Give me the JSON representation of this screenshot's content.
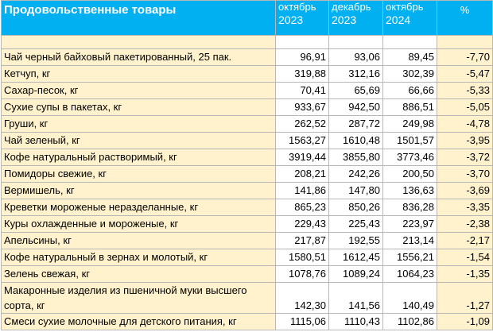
{
  "header": {
    "title": "Продовольственные товары",
    "columns": [
      {
        "month": "октябрь",
        "year": "2023"
      },
      {
        "month": "декабрь",
        "year": "2023"
      },
      {
        "month": "октябрь",
        "year": "2024"
      }
    ],
    "percent_label": "%"
  },
  "rows": [
    {
      "name": "Чай черный байховый пакетированный, 25 пак.",
      "oct2023": "96,91",
      "dec2023": "93,06",
      "oct2024": "89,45",
      "pct": "-7,70"
    },
    {
      "name": "Кетчуп, кг",
      "oct2023": "319,88",
      "dec2023": "312,16",
      "oct2024": "302,39",
      "pct": "-5,47"
    },
    {
      "name": "Сахар-песок, кг",
      "oct2023": "70,41",
      "dec2023": "65,69",
      "oct2024": "66,66",
      "pct": "-5,33"
    },
    {
      "name": "Сухие супы в пакетах, кг",
      "oct2023": "933,67",
      "dec2023": "942,50",
      "oct2024": "886,51",
      "pct": "-5,05"
    },
    {
      "name": "Груши, кг",
      "oct2023": "262,52",
      "dec2023": "287,72",
      "oct2024": "249,98",
      "pct": "-4,78"
    },
    {
      "name": "Чай зеленый, кг",
      "oct2023": "1563,27",
      "dec2023": "1610,48",
      "oct2024": "1501,57",
      "pct": "-3,95"
    },
    {
      "name": "Кофе натуральный растворимый, кг",
      "oct2023": "3919,44",
      "dec2023": "3855,80",
      "oct2024": "3773,46",
      "pct": "-3,72"
    },
    {
      "name": "Помидоры свежие, кг",
      "oct2023": "208,21",
      "dec2023": "242,26",
      "oct2024": "200,50",
      "pct": "-3,70"
    },
    {
      "name": "Вермишель, кг",
      "oct2023": "141,86",
      "dec2023": "147,80",
      "oct2024": "136,63",
      "pct": "-3,69"
    },
    {
      "name": "Креветки мороженые неразделанные, кг",
      "oct2023": "865,23",
      "dec2023": "850,26",
      "oct2024": "836,28",
      "pct": "-3,35"
    },
    {
      "name": "Куры охлажденные и мороженые, кг",
      "oct2023": "229,43",
      "dec2023": "225,43",
      "oct2024": "223,97",
      "pct": "-2,38"
    },
    {
      "name": "Апельсины, кг",
      "oct2023": "217,87",
      "dec2023": "192,55",
      "oct2024": "213,14",
      "pct": "-2,17"
    },
    {
      "name": "Кофе натуральный в зернах и молотый, кг",
      "oct2023": "1580,51",
      "dec2023": "1612,45",
      "oct2024": "1556,21",
      "pct": "-1,54"
    },
    {
      "name": "Зелень свежая, кг",
      "oct2023": "1078,76",
      "dec2023": "1089,24",
      "oct2024": "1064,23",
      "pct": "-1,35"
    },
    {
      "name": "Макаронные изделия из пшеничной муки высшего сорта, кг",
      "oct2023": "142,30",
      "dec2023": "141,56",
      "oct2024": "140,49",
      "pct": "-1,27"
    },
    {
      "name": "Смеси сухие молочные для детского питания, кг",
      "oct2023": "1115,06",
      "dec2023": "1110,43",
      "oct2024": "1102,86",
      "pct": "-1,09"
    }
  ]
}
